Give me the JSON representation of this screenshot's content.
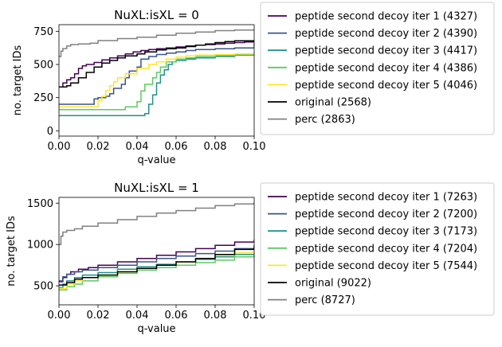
{
  "chart_data": [
    {
      "type": "line",
      "title": "NuXL:isXL = 0",
      "xlabel": "q-value",
      "ylabel": "no. target IDs",
      "xlim": [
        0,
        0.1
      ],
      "ylim": [
        -40,
        800
      ],
      "xticks": [
        0,
        0.02,
        0.04,
        0.06,
        0.08,
        0.1
      ],
      "xtick_labels": [
        "0.00",
        "0.02",
        "0.04",
        "0.06",
        "0.08",
        "0.10"
      ],
      "yticks": [
        0,
        250,
        500,
        750
      ],
      "ytick_labels": [
        "0",
        "250",
        "500",
        "750"
      ],
      "grid": false,
      "legend_position": "outside-right",
      "series": [
        {
          "name": "peptide second decoy iter 1 (4327)",
          "color": "#440154",
          "x": [
            0,
            0.002,
            0.004,
            0.006,
            0.008,
            0.01,
            0.012,
            0.014,
            0.018,
            0.022,
            0.026,
            0.03,
            0.034,
            0.038,
            0.042,
            0.046,
            0.05,
            0.055,
            0.06,
            0.065,
            0.07,
            0.075,
            0.08,
            0.085,
            0.09,
            0.095,
            0.1
          ],
          "y": [
            330,
            360,
            385,
            400,
            430,
            470,
            490,
            500,
            515,
            535,
            550,
            565,
            580,
            595,
            605,
            612,
            618,
            625,
            632,
            640,
            645,
            650,
            655,
            660,
            665,
            670,
            672
          ]
        },
        {
          "name": "peptide second decoy iter 2 (4390)",
          "color": "#3b528b",
          "x": [
            0,
            0.016,
            0.018,
            0.02,
            0.024,
            0.026,
            0.028,
            0.032,
            0.034,
            0.036,
            0.04,
            0.042,
            0.046,
            0.05,
            0.055,
            0.06,
            0.065,
            0.07,
            0.08,
            0.09,
            0.1
          ],
          "y": [
            200,
            200,
            240,
            250,
            260,
            280,
            320,
            350,
            400,
            450,
            480,
            540,
            560,
            575,
            585,
            595,
            605,
            612,
            618,
            625,
            660
          ]
        },
        {
          "name": "peptide second decoy iter 3 (4417)",
          "color": "#21918c",
          "x": [
            0,
            0.024,
            0.044,
            0.046,
            0.048,
            0.05,
            0.052,
            0.054,
            0.056,
            0.058,
            0.06,
            0.065,
            0.07,
            0.08,
            0.09,
            0.1
          ],
          "y": [
            115,
            115,
            130,
            200,
            270,
            360,
            420,
            460,
            500,
            520,
            530,
            540,
            550,
            560,
            570,
            590
          ]
        },
        {
          "name": "peptide second decoy iter 4 (4386)",
          "color": "#5ec962",
          "x": [
            0,
            0.02,
            0.034,
            0.04,
            0.042,
            0.044,
            0.048,
            0.05,
            0.052,
            0.055,
            0.06,
            0.065,
            0.07,
            0.08,
            0.09,
            0.1
          ],
          "y": [
            160,
            160,
            180,
            220,
            300,
            350,
            400,
            440,
            480,
            520,
            540,
            550,
            560,
            568,
            575,
            585
          ]
        },
        {
          "name": "peptide second decoy iter 5 (4046)",
          "color": "#fde725",
          "x": [
            0,
            0.018,
            0.02,
            0.022,
            0.024,
            0.026,
            0.028,
            0.03,
            0.034,
            0.04,
            0.046,
            0.05,
            0.055,
            0.06,
            0.065,
            0.07,
            0.08,
            0.09,
            0.1
          ],
          "y": [
            180,
            180,
            230,
            260,
            300,
            340,
            370,
            400,
            430,
            470,
            500,
            520,
            540,
            555,
            565,
            570,
            575,
            580,
            590
          ]
        },
        {
          "name": "original (2568)",
          "color": "#000000",
          "x": [
            0,
            0.004,
            0.006,
            0.01,
            0.014,
            0.018,
            0.022,
            0.026,
            0.03,
            0.034,
            0.04,
            0.044,
            0.05,
            0.055,
            0.06,
            0.065,
            0.07,
            0.075,
            0.08,
            0.085,
            0.09,
            0.1
          ],
          "y": [
            330,
            340,
            360,
            400,
            440,
            480,
            510,
            530,
            550,
            565,
            580,
            595,
            610,
            618,
            625,
            635,
            645,
            655,
            665,
            672,
            678,
            685
          ]
        },
        {
          "name": "perc (2863)",
          "color": "#808080",
          "x": [
            0,
            0.001,
            0.002,
            0.004,
            0.006,
            0.01,
            0.016,
            0.02,
            0.03,
            0.04,
            0.05,
            0.06,
            0.07,
            0.08,
            0.09,
            0.1
          ],
          "y": [
            560,
            600,
            620,
            640,
            650,
            655,
            660,
            680,
            695,
            705,
            720,
            735,
            745,
            755,
            760,
            765
          ]
        }
      ]
    },
    {
      "type": "line",
      "title": "NuXL:isXL = 1",
      "xlabel": "q-value",
      "ylabel": "no. target IDs",
      "xlim": [
        0,
        0.1
      ],
      "ylim": [
        270,
        1570
      ],
      "xticks": [
        0,
        0.02,
        0.04,
        0.06,
        0.08,
        0.1
      ],
      "xtick_labels": [
        "0.00",
        "0.02",
        "0.04",
        "0.06",
        "0.08",
        "0.10"
      ],
      "yticks": [
        500,
        1000,
        1500
      ],
      "ytick_labels": [
        "500",
        "1000",
        "1500"
      ],
      "grid": false,
      "legend_position": "outside-right",
      "series": [
        {
          "name": "peptide second decoy iter 1 (7263)",
          "color": "#440154",
          "x": [
            0,
            0.002,
            0.004,
            0.006,
            0.01,
            0.015,
            0.02,
            0.03,
            0.04,
            0.05,
            0.06,
            0.07,
            0.08,
            0.09,
            0.1
          ],
          "y": [
            550,
            600,
            640,
            670,
            700,
            720,
            750,
            790,
            830,
            870,
            910,
            950,
            990,
            1030,
            1060
          ]
        },
        {
          "name": "peptide second decoy iter 2 (7200)",
          "color": "#3b528b",
          "x": [
            0,
            0.002,
            0.004,
            0.008,
            0.012,
            0.02,
            0.03,
            0.04,
            0.05,
            0.06,
            0.07,
            0.08,
            0.09,
            0.1
          ],
          "y": [
            560,
            610,
            640,
            670,
            690,
            720,
            750,
            790,
            830,
            860,
            890,
            920,
            950,
            970
          ]
        },
        {
          "name": "peptide second decoy iter 3 (7173)",
          "color": "#21918c",
          "x": [
            0,
            0.002,
            0.004,
            0.008,
            0.012,
            0.02,
            0.03,
            0.04,
            0.05,
            0.06,
            0.07,
            0.08,
            0.09,
            0.1
          ],
          "y": [
            480,
            520,
            560,
            600,
            630,
            660,
            700,
            730,
            760,
            790,
            820,
            850,
            880,
            910
          ]
        },
        {
          "name": "peptide second decoy iter 4 (7204)",
          "color": "#5ec962",
          "x": [
            0,
            0.004,
            0.008,
            0.012,
            0.02,
            0.03,
            0.04,
            0.05,
            0.06,
            0.07,
            0.08,
            0.09,
            0.1
          ],
          "y": [
            450,
            490,
            520,
            560,
            610,
            650,
            690,
            720,
            750,
            780,
            810,
            850,
            890
          ]
        },
        {
          "name": "peptide second decoy iter 5 (7544)",
          "color": "#fde725",
          "x": [
            0,
            0.004,
            0.008,
            0.012,
            0.02,
            0.03,
            0.04,
            0.05,
            0.06,
            0.07,
            0.08,
            0.09,
            0.1
          ],
          "y": [
            470,
            520,
            560,
            600,
            630,
            670,
            710,
            750,
            790,
            830,
            870,
            900,
            930
          ]
        },
        {
          "name": "original (9022)",
          "color": "#000000",
          "x": [
            0,
            0.004,
            0.008,
            0.012,
            0.02,
            0.03,
            0.04,
            0.05,
            0.06,
            0.07,
            0.08,
            0.09,
            0.1
          ],
          "y": [
            510,
            540,
            580,
            600,
            630,
            670,
            710,
            750,
            790,
            830,
            880,
            940,
            990
          ]
        },
        {
          "name": "perc (8727)",
          "color": "#808080",
          "x": [
            0,
            0.001,
            0.002,
            0.004,
            0.008,
            0.012,
            0.02,
            0.03,
            0.04,
            0.05,
            0.06,
            0.07,
            0.08,
            0.09,
            0.1
          ],
          "y": [
            1000,
            1100,
            1150,
            1170,
            1190,
            1220,
            1260,
            1300,
            1340,
            1380,
            1410,
            1440,
            1470,
            1490,
            1510
          ]
        }
      ]
    }
  ]
}
